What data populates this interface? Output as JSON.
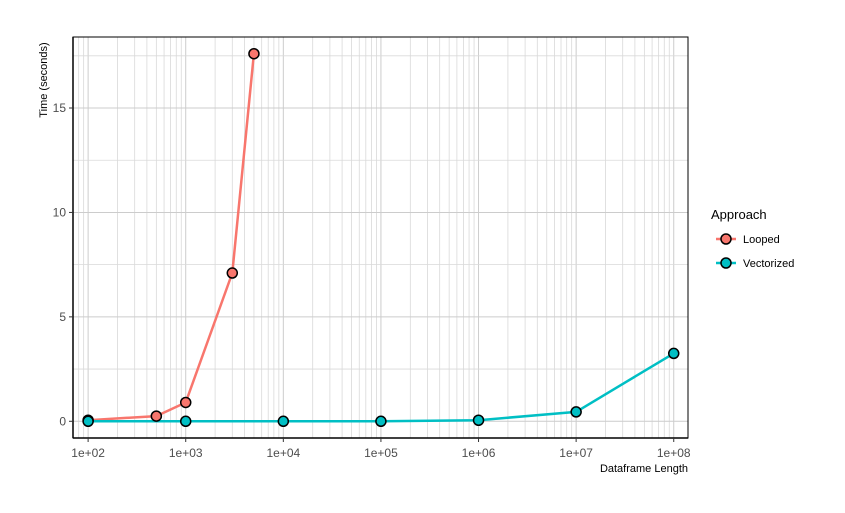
{
  "chart_data": {
    "type": "line",
    "xlabel": "Dataframe Length",
    "ylabel": "Time (seconds)",
    "x_scale": "log10",
    "xlim": [
      70,
      140000000
    ],
    "ylim": [
      -0.8,
      18.4
    ],
    "x_ticks": [
      100,
      1000,
      10000,
      100000,
      1000000,
      10000000,
      100000000
    ],
    "x_tick_labels": [
      "1e+02",
      "1e+03",
      "1e+04",
      "1e+05",
      "1e+06",
      "1e+07",
      "1e+08"
    ],
    "y_ticks": [
      0,
      5,
      10,
      15
    ],
    "y_tick_labels": [
      "0",
      "5",
      "10",
      "15"
    ],
    "grid": true,
    "legend": {
      "title": "Approach",
      "position": "right"
    },
    "series": [
      {
        "name": "Looped",
        "color": "#f8766d",
        "x": [
          100,
          500,
          1000,
          3000,
          5000
        ],
        "y": [
          0.05,
          0.25,
          0.9,
          7.1,
          17.6
        ]
      },
      {
        "name": "Vectorized",
        "color": "#00bfc4",
        "x": [
          100,
          1000,
          10000,
          100000,
          1000000,
          10000000,
          100000000
        ],
        "y": [
          0.0,
          0.0,
          0.0,
          0.0,
          0.05,
          0.45,
          3.25
        ]
      }
    ]
  }
}
